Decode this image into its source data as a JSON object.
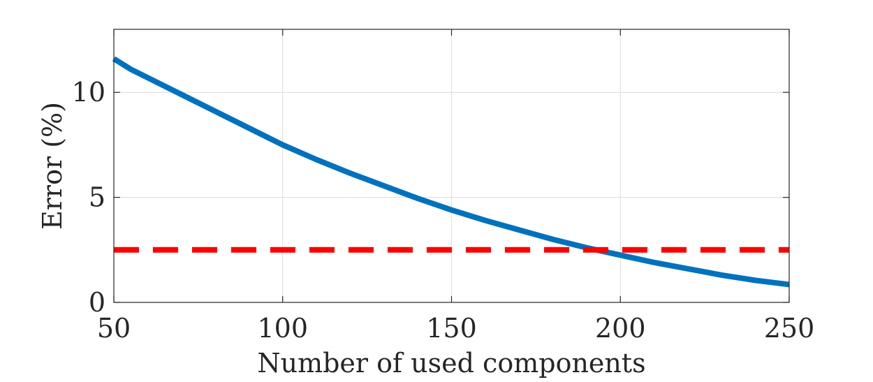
{
  "chart_data": {
    "type": "line",
    "xlabel": "Number of used components",
    "ylabel": "Error (%)",
    "xlim": [
      50,
      250
    ],
    "ylim": [
      0,
      13
    ],
    "xticks": [
      50,
      100,
      150,
      200,
      250
    ],
    "yticks": [
      0,
      5,
      10
    ],
    "grid": true,
    "series": [
      {
        "color": "#0072BD",
        "style": "solid",
        "x": [
          50,
          55,
          60,
          70,
          80,
          90,
          100,
          110,
          120,
          130,
          140,
          150,
          160,
          170,
          180,
          190,
          200,
          210,
          220,
          230,
          240,
          250
        ],
        "y": [
          11.6,
          11.1,
          10.7,
          9.9,
          9.1,
          8.3,
          7.5,
          6.8,
          6.15,
          5.55,
          4.95,
          4.4,
          3.9,
          3.45,
          3.0,
          2.6,
          2.25,
          1.9,
          1.6,
          1.3,
          1.05,
          0.85
        ]
      },
      {
        "color": "#FF0000",
        "style": "dashed",
        "x": [
          50,
          250
        ],
        "y": [
          2.5,
          2.5
        ]
      }
    ]
  }
}
